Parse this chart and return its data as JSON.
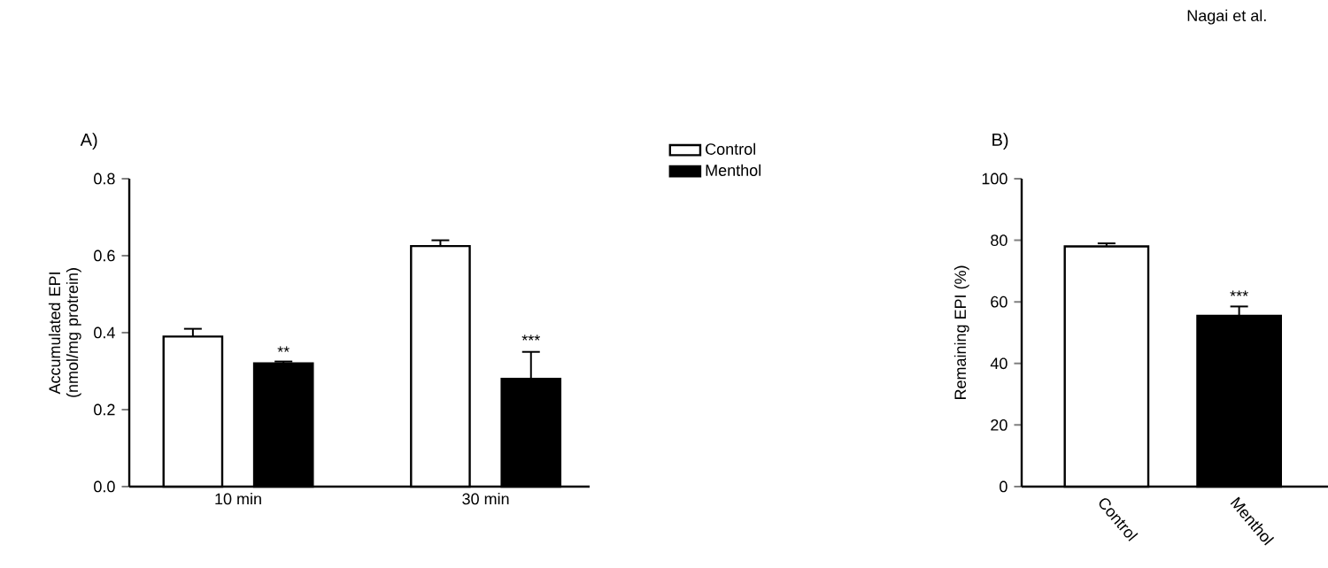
{
  "chart_data": [
    {
      "type": "bar",
      "title": "A)",
      "ylabel": "Accumulated EPI (nmol/mg protrein)",
      "categories": [
        "10 min",
        "30 min"
      ],
      "series": [
        {
          "name": "Control",
          "color": "#ffffff",
          "values": [
            0.39,
            0.625
          ],
          "errors": [
            0.02,
            0.015
          ]
        },
        {
          "name": "Menthol",
          "color": "#000000",
          "values": [
            0.32,
            0.28
          ],
          "errors": [
            0.005,
            0.07
          ]
        }
      ],
      "ylim": [
        0,
        0.8
      ],
      "yticks": [
        {
          "value": 0,
          "label": "0.0"
        },
        0.2,
        0.4,
        0.6,
        0.8
      ],
      "legend": "right",
      "annotations": [
        "**",
        "***"
      ]
    },
    {
      "type": "bar",
      "title": "B)",
      "ylabel": "Remaining EPI (%)",
      "categories": [
        "Control",
        "Menthol"
      ],
      "values": [
        78,
        55.5
      ],
      "colors": [
        "#ffffff",
        "#000000"
      ],
      "errors": [
        1,
        3
      ],
      "ylim": [
        0,
        100
      ],
      "yticks": [
        0,
        20,
        40,
        60,
        80,
        100
      ],
      "annotations": [
        "***",
        "Nagai et al."
      ]
    }
  ]
}
